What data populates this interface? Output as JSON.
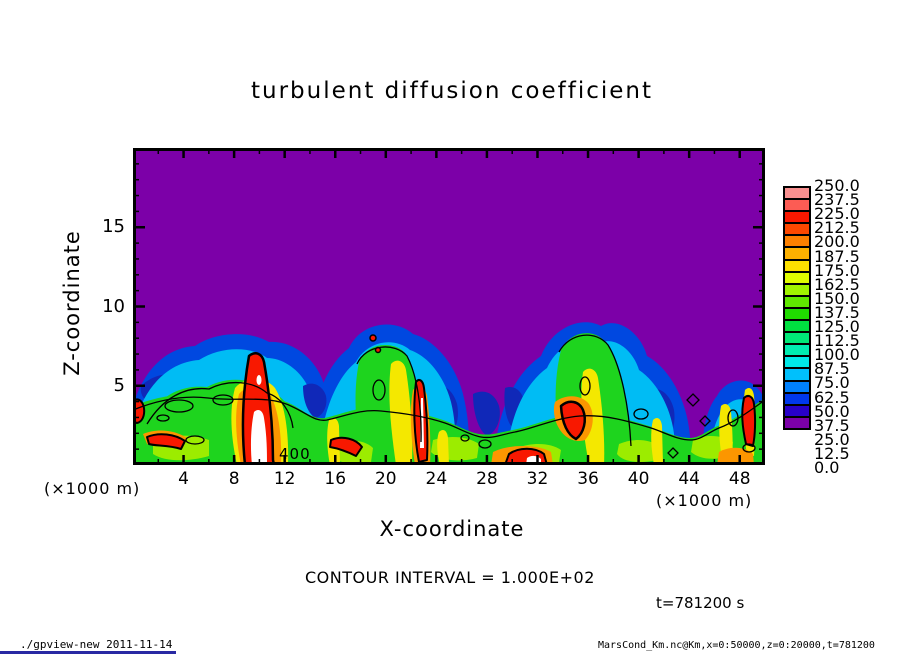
{
  "title": "turbulent diffusion coefficient",
  "plot": {
    "x_axis": {
      "label": "X-coordinate",
      "units": "(×1000 m)",
      "range": [
        0,
        50
      ],
      "tick_labels": [
        4,
        8,
        12,
        16,
        20,
        24,
        28,
        32,
        36,
        40,
        44,
        48
      ],
      "minor_tick_step": 2
    },
    "z_axis": {
      "label": "Z-coordinate",
      "units": "(×1000 m)",
      "range": [
        0,
        20
      ],
      "tick_labels": [
        5,
        10,
        15
      ],
      "minor_tick_step": 1
    },
    "contour_label": "400"
  },
  "colorbar": {
    "min": 0.0,
    "max": 250.0,
    "step": 12.5,
    "tick_labels_top_to_bottom": [
      "250.0",
      "237.5",
      "225.0",
      "212.5",
      "200.0",
      "187.5",
      "175.0",
      "162.5",
      "150.0",
      "137.5",
      "125.0",
      "112.5",
      "100.0",
      "87.5",
      "75.0",
      "62.5",
      "50.0",
      "37.5",
      "25.0",
      "12.5",
      "0.0"
    ],
    "colors_bottom_to_top": [
      "#7C00A8",
      "#2800C8",
      "#0038EC",
      "#0080FC",
      "#00C0FC",
      "#00E8E8",
      "#00ECB0",
      "#00E878",
      "#00E040",
      "#20DC00",
      "#60E800",
      "#A0F400",
      "#E0FC00",
      "#FCE000",
      "#FCB000",
      "#FC8000",
      "#FC4800",
      "#F81800",
      "#FC5C54",
      "#F89090"
    ]
  },
  "annotations": {
    "contour_interval": "CONTOUR INTERVAL = 1.000E+02",
    "time_stamp": "t=781200 s"
  },
  "status_bar": {
    "left": "./gpview-new  2011-11-14",
    "right": "MarsCond_Km.nc@Km,x=0:50000,z=0:20000,t=781200"
  },
  "chart_data": {
    "type": "heatmap",
    "title": "turbulent diffusion coefficient",
    "xlabel": "X-coordinate (×1000 m)",
    "ylabel": "Z-coordinate (×1000 m)",
    "x_range": [
      0,
      50
    ],
    "z_range": [
      0,
      20
    ],
    "time": "t=781200 s",
    "contour_interval": 100.0,
    "shade_levels": [
      0.0,
      12.5,
      25.0,
      37.5,
      50.0,
      62.5,
      75.0,
      87.5,
      100.0,
      112.5,
      125.0,
      137.5,
      150.0,
      162.5,
      175.0,
      187.5,
      200.0,
      212.5,
      225.0,
      237.5,
      250.0
    ],
    "shade_colors_low_to_high": [
      "#7C00A8",
      "#2800C8",
      "#0038EC",
      "#0080FC",
      "#00C0FC",
      "#00E8E8",
      "#00ECB0",
      "#00E878",
      "#00E040",
      "#20DC00",
      "#60E800",
      "#A0F400",
      "#E0FC00",
      "#FCE000",
      "#FCB000",
      "#FC8000",
      "#FC4800",
      "#F81800",
      "#FC5C54",
      "#F89090"
    ],
    "field_description": "Turbulent diffusion coefficient in an x-z plane. Value ~0 (purple) everywhere above z≈8–9 km. Below, a turbulent boundary layer (green/yellow, ~100–175) with three convective plumes of enhanced mixing (blue/cyan fringes ~25–100) and narrow intense cores exceeding 250 (red with white interiors, >400) rooted near the surface. Black contour lines every 100.",
    "features": [
      {
        "feature": "quiescent background",
        "value": 0,
        "extent": "z > ~8.5 km across full domain (purple)"
      },
      {
        "feature": "convective plume",
        "x_center": 8,
        "x_extent": [
          0,
          13
        ],
        "top_z": 8.5
      },
      {
        "feature": "convective plume",
        "x_center": 21,
        "x_extent": [
          14,
          27
        ],
        "top_z": 9.0
      },
      {
        "feature": "convective plume",
        "x_center": 37,
        "x_extent": [
          29,
          44
        ],
        "top_z": 9.5
      },
      {
        "feature": "edge plume",
        "x_center": 48,
        "x_extent": [
          45,
          50
        ],
        "top_z": 5.5
      },
      {
        "feature": "intense core (>250, white >400)",
        "x_center": 10,
        "z_extent": [
          0,
          7
        ]
      },
      {
        "feature": "intense core (>250)",
        "x_center": 22.5,
        "z_extent": [
          0,
          5.5
        ]
      },
      {
        "feature": "intense core (>250)",
        "x_center": 34.5,
        "z_extent": [
          1.5,
          3.5
        ]
      },
      {
        "feature": "intense core (>250)",
        "x_center": 49,
        "z_extent": [
          1,
          4
        ]
      },
      {
        "feature": "labeled contour",
        "value": 400,
        "x": 11.5,
        "z": 0.6
      }
    ]
  }
}
